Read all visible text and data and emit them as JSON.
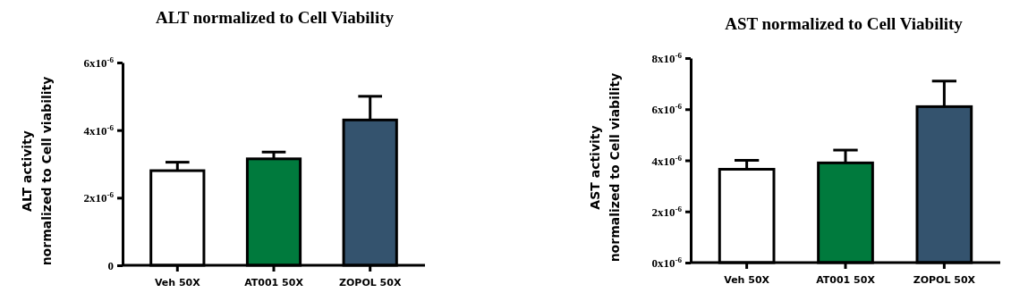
{
  "chart_data": [
    {
      "type": "bar",
      "title": "ALT normalized to Cell Viability",
      "ylabel": "ALT activity\nnormalized to Cell viability",
      "categories": [
        "Veh 50X",
        "AT001 50X",
        "ZOPOL 50X"
      ],
      "values": [
        2.8e-06,
        3.15e-06,
        4.3e-06
      ],
      "errors": [
        [
          2.8e-06,
          3.05e-06
        ],
        [
          3.15e-06,
          3.35e-06
        ],
        [
          4.3e-06,
          5e-06
        ]
      ],
      "colors": [
        "#ffffff",
        "#007a3d",
        "#34536e"
      ],
      "ylim": [
        0,
        6e-06
      ],
      "yticks": [
        {
          "value": 0,
          "label": "0"
        },
        {
          "value": 2e-06,
          "label": "2x10$^{-6}$"
        },
        {
          "value": 4e-06,
          "label": "4x10$^{-6}$"
        },
        {
          "value": 6e-06,
          "label": "6x10$^{-6}$"
        }
      ],
      "grid": false
    },
    {
      "type": "bar",
      "title": "AST normalized to Cell Viability",
      "ylabel": "AST activity\nnormalized to Cell viability",
      "categories": [
        "Veh 50X",
        "AT001 50X",
        "ZOPOL 50X"
      ],
      "values": [
        3.65e-06,
        3.9e-06,
        6.1e-06
      ],
      "errors": [
        [
          3.65e-06,
          4e-06
        ],
        [
          3.9e-06,
          4.4e-06
        ],
        [
          6.1e-06,
          7.1e-06
        ]
      ],
      "colors": [
        "#ffffff",
        "#007a3d",
        "#34536e"
      ],
      "ylim": [
        0,
        8e-06
      ],
      "yticks": [
        {
          "value": 0,
          "label": "0x10$^{-6}$"
        },
        {
          "value": 2e-06,
          "label": "2x10$^{-6}$"
        },
        {
          "value": 4e-06,
          "label": "4x10$^{-6}$"
        },
        {
          "value": 6e-06,
          "label": "6x10$^{-6}$"
        },
        {
          "value": 8e-06,
          "label": "8x10$^{-6}$"
        }
      ],
      "grid": false
    }
  ]
}
